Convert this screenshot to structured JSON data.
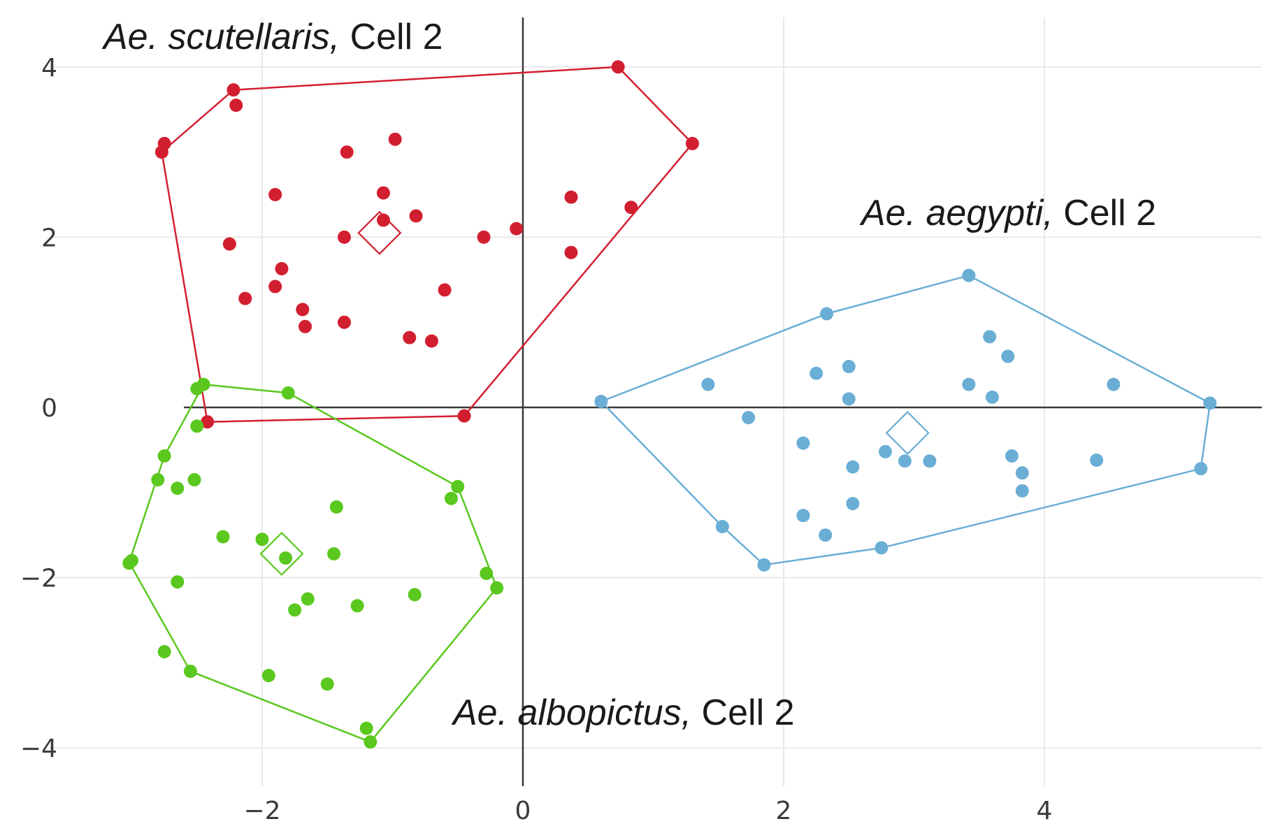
{
  "chart_data": {
    "type": "scatter",
    "title": "",
    "xlabel": "",
    "ylabel": "",
    "xlim": [
      -3.8,
      5.6
    ],
    "ylim": [
      -4.8,
      4.6
    ],
    "x_ticks": [
      {
        "value": -2,
        "label": "−2"
      },
      {
        "value": 0,
        "label": "0"
      },
      {
        "value": 2,
        "label": "2"
      },
      {
        "value": 4,
        "label": "4"
      }
    ],
    "y_ticks": [
      {
        "value": 4,
        "label": "4"
      },
      {
        "value": 2,
        "label": "2"
      },
      {
        "value": 0,
        "label": "0"
      },
      {
        "value": -2,
        "label": "−2"
      },
      {
        "value": -4,
        "label": "−4"
      }
    ],
    "grid": true,
    "series": [
      {
        "id": "scutellaris",
        "label_italic": "Ae. scutellaris,",
        "label_plain": " Cell 2",
        "color": "#d21f30",
        "centroid": [
          -1.1,
          2.05
        ],
        "hull": [
          [
            -2.77,
            3.0
          ],
          [
            -2.22,
            3.73
          ],
          [
            0.73,
            4.0
          ],
          [
            1.3,
            3.1
          ],
          [
            -0.45,
            -0.1
          ],
          [
            -2.42,
            -0.17
          ]
        ],
        "points": [
          [
            -2.77,
            3.0
          ],
          [
            -2.75,
            3.1
          ],
          [
            -2.22,
            3.73
          ],
          [
            -2.2,
            3.55
          ],
          [
            0.73,
            4.0
          ],
          [
            1.3,
            3.1
          ],
          [
            -0.45,
            -0.1
          ],
          [
            -2.42,
            -0.17
          ],
          [
            -1.35,
            3.0
          ],
          [
            -0.98,
            3.15
          ],
          [
            -1.9,
            2.5
          ],
          [
            -1.07,
            2.52
          ],
          [
            -0.82,
            2.25
          ],
          [
            -1.07,
            2.2
          ],
          [
            -2.25,
            1.92
          ],
          [
            -1.37,
            2.0
          ],
          [
            -0.3,
            2.0
          ],
          [
            -0.05,
            2.1
          ],
          [
            0.37,
            2.47
          ],
          [
            0.37,
            1.82
          ],
          [
            0.83,
            2.35
          ],
          [
            -1.85,
            1.63
          ],
          [
            -1.9,
            1.42
          ],
          [
            -2.13,
            1.28
          ],
          [
            -0.6,
            1.38
          ],
          [
            -1.69,
            1.15
          ],
          [
            -1.67,
            0.95
          ],
          [
            -1.37,
            1.0
          ],
          [
            -0.87,
            0.82
          ],
          [
            -0.7,
            0.78
          ]
        ]
      },
      {
        "id": "aegypti",
        "label_italic": "Ae. aegypti,",
        "label_plain": " Cell 2",
        "color": "#6aaed6",
        "centroid": [
          2.95,
          -0.3
        ],
        "hull": [
          [
            0.6,
            0.07
          ],
          [
            2.33,
            1.1
          ],
          [
            3.42,
            1.55
          ],
          [
            5.27,
            0.05
          ],
          [
            5.2,
            -0.72
          ],
          [
            2.75,
            -1.65
          ],
          [
            1.85,
            -1.85
          ],
          [
            1.53,
            -1.4
          ]
        ],
        "points": [
          [
            0.6,
            0.07
          ],
          [
            2.33,
            1.1
          ],
          [
            3.42,
            1.55
          ],
          [
            5.27,
            0.05
          ],
          [
            5.2,
            -0.72
          ],
          [
            2.75,
            -1.65
          ],
          [
            1.85,
            -1.85
          ],
          [
            1.53,
            -1.4
          ],
          [
            1.42,
            0.27
          ],
          [
            1.73,
            -0.12
          ],
          [
            2.25,
            0.4
          ],
          [
            2.5,
            0.48
          ],
          [
            2.5,
            0.1
          ],
          [
            2.15,
            -0.42
          ],
          [
            3.58,
            0.83
          ],
          [
            3.72,
            0.6
          ],
          [
            3.42,
            0.27
          ],
          [
            3.6,
            0.12
          ],
          [
            4.53,
            0.27
          ],
          [
            2.78,
            -0.52
          ],
          [
            2.93,
            -0.63
          ],
          [
            3.12,
            -0.63
          ],
          [
            2.53,
            -0.7
          ],
          [
            3.75,
            -0.57
          ],
          [
            3.83,
            -0.77
          ],
          [
            4.4,
            -0.62
          ],
          [
            3.83,
            -0.98
          ],
          [
            2.53,
            -1.13
          ],
          [
            2.15,
            -1.27
          ],
          [
            2.32,
            -1.5
          ]
        ]
      },
      {
        "id": "albopictus",
        "label_italic": "Ae. albopictus,",
        "label_plain": " Cell 2",
        "color": "#5ac81e",
        "centroid": [
          -1.85,
          -1.72
        ],
        "hull": [
          [
            -2.45,
            0.27
          ],
          [
            -1.8,
            0.17
          ],
          [
            -0.5,
            -0.93
          ],
          [
            -0.2,
            -2.12
          ],
          [
            -1.17,
            -3.93
          ],
          [
            -2.55,
            -3.1
          ],
          [
            -3.02,
            -1.82
          ],
          [
            -2.75,
            -0.57
          ]
        ],
        "points": [
          [
            -2.45,
            0.27
          ],
          [
            -2.5,
            0.22
          ],
          [
            -1.8,
            0.17
          ],
          [
            -0.5,
            -0.93
          ],
          [
            -0.55,
            -1.07
          ],
          [
            -0.28,
            -1.95
          ],
          [
            -0.2,
            -2.12
          ],
          [
            -1.17,
            -3.93
          ],
          [
            -1.2,
            -3.77
          ],
          [
            -2.55,
            -3.1
          ],
          [
            -2.75,
            -2.87
          ],
          [
            -3.0,
            -1.8
          ],
          [
            -3.02,
            -1.83
          ],
          [
            -2.75,
            -0.57
          ],
          [
            -2.8,
            -0.85
          ],
          [
            -2.65,
            -0.95
          ],
          [
            -2.52,
            -0.85
          ],
          [
            -2.5,
            -0.22
          ],
          [
            -1.43,
            -1.17
          ],
          [
            -2.3,
            -1.52
          ],
          [
            -2.0,
            -1.55
          ],
          [
            -1.82,
            -1.77
          ],
          [
            -1.45,
            -1.72
          ],
          [
            -2.65,
            -2.05
          ],
          [
            -1.65,
            -2.25
          ],
          [
            -1.75,
            -2.38
          ],
          [
            -1.27,
            -2.33
          ],
          [
            -0.83,
            -2.2
          ],
          [
            -1.95,
            -3.15
          ],
          [
            -1.5,
            -3.25
          ]
        ]
      }
    ]
  }
}
